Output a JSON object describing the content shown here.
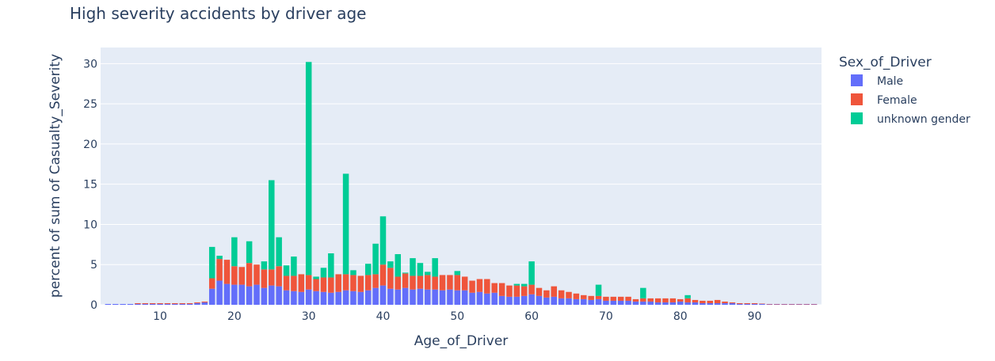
{
  "chart_data": {
    "type": "bar",
    "barmode": "stack",
    "title": "High severity accidents by driver age",
    "xlabel": "Age_of_Driver",
    "ylabel": "percent of sum of Casualty_Severity",
    "xlim": [
      2,
      99
    ],
    "ylim": [
      0,
      32
    ],
    "x_ticks": [
      10,
      20,
      30,
      40,
      50,
      60,
      70,
      80,
      90
    ],
    "y_ticks": [
      0,
      5,
      10,
      15,
      20,
      25,
      30
    ],
    "grid": true,
    "legend_title": "Sex_of_Driver",
    "legend_position": "right",
    "x": [
      3,
      4,
      5,
      6,
      7,
      8,
      9,
      10,
      11,
      12,
      13,
      14,
      15,
      16,
      17,
      18,
      19,
      20,
      21,
      22,
      23,
      24,
      25,
      26,
      27,
      28,
      29,
      30,
      31,
      32,
      33,
      34,
      35,
      36,
      37,
      38,
      39,
      40,
      41,
      42,
      43,
      44,
      45,
      46,
      47,
      48,
      49,
      50,
      51,
      52,
      53,
      54,
      55,
      56,
      57,
      58,
      59,
      60,
      61,
      62,
      63,
      64,
      65,
      66,
      67,
      68,
      69,
      70,
      71,
      72,
      73,
      74,
      75,
      76,
      77,
      78,
      79,
      80,
      81,
      82,
      83,
      84,
      85,
      86,
      87,
      88,
      89,
      90,
      91,
      92,
      93,
      94,
      95,
      96,
      97,
      98
    ],
    "series": [
      {
        "name": "Male",
        "color": "#636efa",
        "values": [
          0.1,
          0.1,
          0.1,
          0.1,
          0.1,
          0.1,
          0.1,
          0.1,
          0.1,
          0.1,
          0.1,
          0.1,
          0.2,
          0.3,
          2.0,
          3.0,
          2.6,
          2.5,
          2.5,
          2.3,
          2.5,
          2.1,
          2.4,
          2.3,
          1.8,
          1.7,
          1.6,
          1.9,
          1.7,
          1.6,
          1.5,
          1.6,
          1.8,
          1.7,
          1.6,
          1.8,
          2.1,
          2.4,
          2.0,
          1.9,
          2.1,
          1.9,
          2.0,
          1.9,
          1.9,
          1.8,
          1.9,
          1.8,
          1.8,
          1.5,
          1.6,
          1.4,
          1.5,
          1.1,
          1.0,
          1.0,
          1.1,
          1.3,
          1.1,
          0.9,
          1.0,
          0.8,
          0.8,
          0.7,
          0.7,
          0.6,
          0.7,
          0.5,
          0.5,
          0.5,
          0.5,
          0.4,
          0.4,
          0.4,
          0.3,
          0.3,
          0.3,
          0.4,
          0.3,
          0.3,
          0.2,
          0.2,
          0.2,
          0.2,
          0.2,
          0.1,
          0.1,
          0.1,
          0.1,
          0.05,
          0.05,
          0.05,
          0.05,
          0.05,
          0.05,
          0.05
        ]
      },
      {
        "name": "Female",
        "color": "#ef553b",
        "values": [
          0,
          0,
          0,
          0,
          0.1,
          0.1,
          0.1,
          0.1,
          0.1,
          0.1,
          0.1,
          0.1,
          0.1,
          0.1,
          1.3,
          2.7,
          3.0,
          2.3,
          2.2,
          2.9,
          2.5,
          2.3,
          2.0,
          2.5,
          1.8,
          1.9,
          2.2,
          1.8,
          1.5,
          1.8,
          1.9,
          2.2,
          2.0,
          2.0,
          2.0,
          1.9,
          1.7,
          2.6,
          2.6,
          1.6,
          1.8,
          1.7,
          1.6,
          1.8,
          1.6,
          1.9,
          1.8,
          1.9,
          1.7,
          1.5,
          1.6,
          1.8,
          1.2,
          1.6,
          1.4,
          1.4,
          1.2,
          1.2,
          1.0,
          0.9,
          1.3,
          1.0,
          0.8,
          0.7,
          0.5,
          0.5,
          0.4,
          0.5,
          0.5,
          0.5,
          0.5,
          0.3,
          0.4,
          0.4,
          0.5,
          0.5,
          0.5,
          0.3,
          0.5,
          0.3,
          0.3,
          0.3,
          0.4,
          0.2,
          0.1,
          0.1,
          0.1,
          0.1,
          0.05,
          0.05,
          0.05,
          0.05,
          0.05,
          0.05,
          0.05,
          0.05
        ]
      },
      {
        "name": "unknown gender",
        "color": "#00cc96",
        "values": [
          0,
          0,
          0,
          0,
          0,
          0,
          0,
          0,
          0,
          0,
          0,
          0,
          0,
          0,
          3.9,
          0.4,
          0,
          3.6,
          0,
          2.7,
          0,
          1.0,
          11.1,
          3.6,
          1.3,
          2.4,
          0,
          26.5,
          0.3,
          1.2,
          3.0,
          0,
          12.5,
          0.6,
          0,
          1.4,
          3.8,
          6.0,
          0.8,
          2.8,
          0.1,
          2.2,
          1.6,
          0.4,
          2.3,
          0,
          0,
          0.5,
          0,
          0,
          0,
          0,
          0,
          0,
          0,
          0.2,
          0.3,
          2.9,
          0,
          0,
          0,
          0,
          0,
          0,
          0,
          0,
          1.4,
          0,
          0,
          0,
          0,
          0,
          1.3,
          0,
          0,
          0,
          0,
          0,
          0.4,
          0,
          0,
          0,
          0,
          0,
          0,
          0,
          0,
          0,
          0,
          0,
          0,
          0,
          0,
          0,
          0,
          0
        ]
      }
    ]
  }
}
